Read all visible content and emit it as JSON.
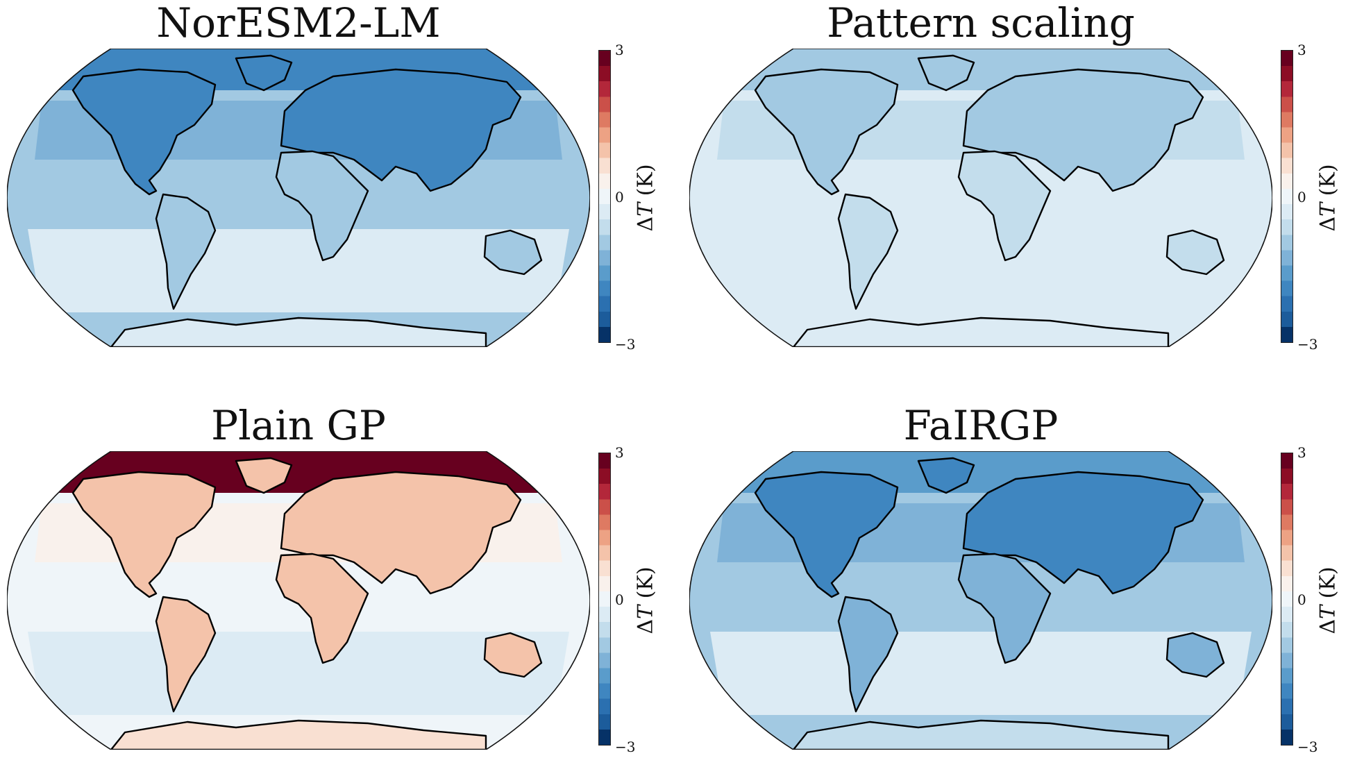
{
  "colorbar": {
    "label_prefix": "Δ",
    "label_var": "T",
    "label_unit": " (K)",
    "tick_max": "3",
    "tick_mid": "0",
    "tick_min": "−3",
    "vmin": -3,
    "vmax": 3,
    "colors": [
      "#063267",
      "#1c5c9b",
      "#2b70b0",
      "#3f86c0",
      "#5a9ccb",
      "#7fb2d7",
      "#a2c9e2",
      "#c3ddec",
      "#dcebf4",
      "#eff5f9",
      "#f9f1ec",
      "#f9e0d2",
      "#f4c3aa",
      "#eda284",
      "#de7a62",
      "#cb5049",
      "#b3273a",
      "#8c0d25",
      "#67001f"
    ]
  },
  "panels": [
    {
      "title": "NorESM2-LM",
      "anomaly_classes": {
        "ocean_tropics": -0.8,
        "ocean_north": -1.4,
        "ocean_south": -0.2,
        "land_north": -1.8,
        "land_tropics": -1.1,
        "arctic": -2.0,
        "antarctica": -0.4
      }
    },
    {
      "title": "Pattern scaling",
      "anomaly_classes": {
        "ocean_tropics": -0.4,
        "ocean_north": -0.7,
        "ocean_south": -0.2,
        "land_north": -1.1,
        "land_tropics": -0.7,
        "arctic": -0.9,
        "antarctica": -0.4
      }
    },
    {
      "title": "Plain GP",
      "anomaly_classes": {
        "ocean_tropics": 0.1,
        "ocean_north": 0.4,
        "ocean_south": -0.3,
        "land_north": 0.9,
        "land_tropics": 0.8,
        "arctic": 2.8,
        "antarctica": 0.5
      }
    },
    {
      "title": "FaIRGP",
      "anomaly_classes": {
        "ocean_tropics": -0.9,
        "ocean_north": -1.4,
        "ocean_south": -0.3,
        "land_north": -1.9,
        "land_tropics": -1.2,
        "arctic": -1.6,
        "antarctica": -0.5
      }
    }
  ]
}
